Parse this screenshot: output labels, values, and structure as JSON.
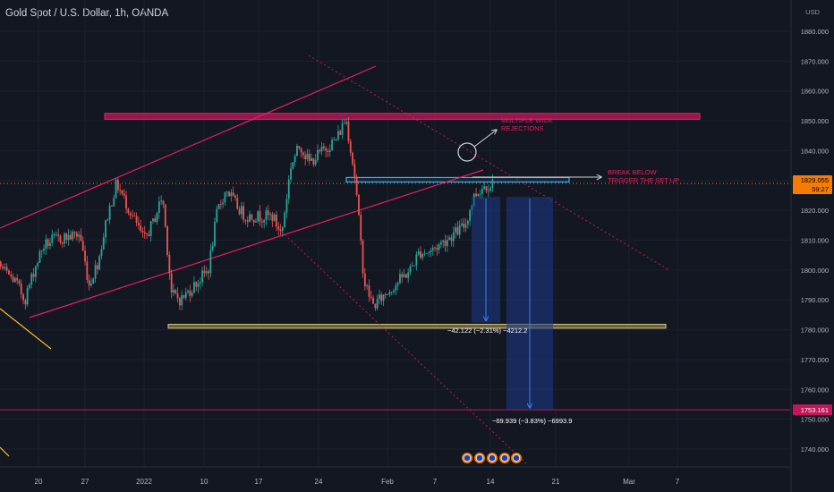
{
  "header": {
    "title": "Gold Spot / U.S. Dollar, 1h, OANDA"
  },
  "price_axis": {
    "currency": "USD",
    "ticks": [
      "1880.000",
      "1870.000",
      "1860.000",
      "1850.000",
      "1840.000",
      "1830.000",
      "1820.000",
      "1810.000",
      "1800.000",
      "1790.000",
      "1780.000",
      "1770.000",
      "1760.000",
      "1750.000",
      "1740.000"
    ],
    "current_price": "1829.055",
    "countdown": "59:27",
    "target_price": "1753.161"
  },
  "time_axis": {
    "ticks": [
      "20",
      "27",
      "2022",
      "10",
      "17",
      "24",
      "Feb",
      "7",
      "14",
      "21",
      "Mar",
      "7"
    ]
  },
  "annotations": {
    "wick_label": [
      "MULTIPLE WICK",
      "REJECTIONS"
    ],
    "break_label": [
      "BREAK BELOW",
      "TRIGGER THE SET UP"
    ],
    "measure_1": "−42.122 (−2.31%) −4212.2",
    "measure_2": "−69.939 (−3.83%) −6993.9"
  },
  "colors": {
    "background": "#131722",
    "up_candle": "#26a69a",
    "down_candle": "#ef5350",
    "channel": "#e91e63",
    "resistance_zone": "#c2185b",
    "support_zone": "#a89a55",
    "measure_fill": "#1e3a8a",
    "target_line": "#c2185b",
    "price_label": "#f57c00"
  },
  "chart_data": {
    "type": "candlestick",
    "symbol": "XAUUSD",
    "interval": "1h",
    "ylim": [
      1734,
      1884
    ],
    "y_unit": "USD",
    "path": [
      [
        "2021-12-15",
        1758
      ],
      [
        "2021-12-16",
        1798
      ],
      [
        "2021-12-17",
        1805
      ],
      [
        "2021-12-20",
        1796
      ],
      [
        "2021-12-21",
        1790
      ],
      [
        "2021-12-22",
        1800
      ],
      [
        "2021-12-23",
        1808
      ],
      [
        "2021-12-24",
        1810
      ],
      [
        "2021-12-27",
        1812
      ],
      [
        "2021-12-28",
        1795
      ],
      [
        "2021-12-29",
        1803
      ],
      [
        "2021-12-30",
        1818
      ],
      [
        "2021-12-31",
        1829
      ],
      [
        "2022-01-03",
        1810
      ],
      [
        "2022-01-04",
        1816
      ],
      [
        "2022-01-05",
        1825
      ],
      [
        "2022-01-06",
        1792
      ],
      [
        "2022-01-07",
        1790
      ],
      [
        "2022-01-10",
        1800
      ],
      [
        "2022-01-11",
        1820
      ],
      [
        "2022-01-12",
        1827
      ],
      [
        "2022-01-13",
        1822
      ],
      [
        "2022-01-14",
        1818
      ],
      [
        "2022-01-17",
        1818
      ],
      [
        "2022-01-18",
        1812
      ],
      [
        "2022-01-19",
        1835
      ],
      [
        "2022-01-20",
        1842
      ],
      [
        "2022-01-21",
        1836
      ],
      [
        "2022-01-24",
        1844
      ],
      [
        "2022-01-25",
        1851
      ],
      [
        "2022-01-26",
        1831
      ],
      [
        "2022-01-27",
        1796
      ],
      [
        "2022-01-28",
        1788
      ],
      [
        "2022-01-31",
        1797
      ],
      [
        "2022-02-01",
        1800
      ],
      [
        "2022-02-02",
        1806
      ],
      [
        "2022-02-03",
        1806
      ],
      [
        "2022-02-04",
        1808
      ],
      [
        "2022-02-07",
        1815
      ],
      [
        "2022-02-08",
        1825
      ],
      [
        "2022-02-09",
        1828
      ],
      [
        "2022-02-10",
        1829
      ]
    ],
    "drawings": {
      "resistance_zone": [
        1850.5,
        1852.5
      ],
      "support_zone": [
        1780.5,
        1781.8
      ],
      "rejection_zone": [
        1829.5,
        1831
      ],
      "break_level": 1824.5,
      "target_1_change": -42.122,
      "target_2_change": -69.939,
      "target_level": 1753.161
    }
  }
}
